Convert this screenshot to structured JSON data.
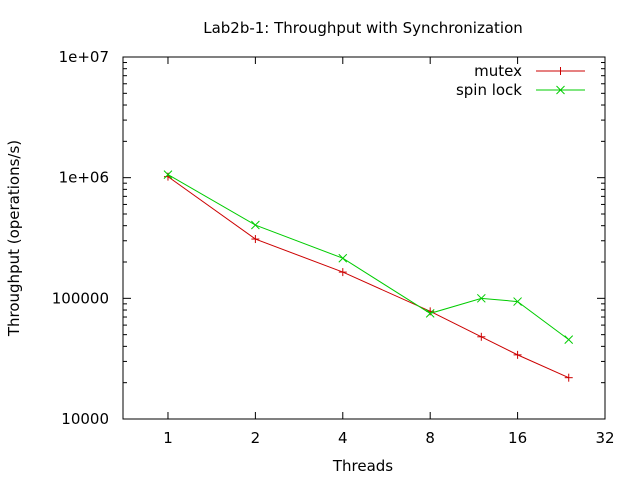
{
  "chart_data": {
    "type": "line",
    "title": "Lab2b-1: Throughput with Synchronization",
    "xlabel": "Threads",
    "ylabel": "Throughput (operations/s)",
    "x_scale": "log2",
    "y_scale": "log10",
    "xlim": [
      0.7,
      32
    ],
    "ylim": [
      10000,
      10000000
    ],
    "x_ticks": [
      1,
      2,
      4,
      8,
      16,
      32
    ],
    "x_tick_labels": [
      "1",
      "2",
      "4",
      "8",
      "16",
      "32"
    ],
    "y_ticks": [
      10000,
      100000,
      1000000,
      10000000
    ],
    "y_tick_labels": [
      "10000",
      "100000",
      "1e+06",
      "1e+07"
    ],
    "grid": false,
    "legend_position": "top-right",
    "series": [
      {
        "name": "mutex",
        "color": "#cc0000",
        "marker": "plus",
        "x": [
          1,
          2,
          4,
          8,
          12,
          16,
          24
        ],
        "y": [
          1020000,
          310000,
          165000,
          78000,
          48000,
          34000,
          22000
        ]
      },
      {
        "name": "spin lock",
        "color": "#00cc00",
        "marker": "cross",
        "x": [
          1,
          2,
          4,
          8,
          12,
          16,
          24
        ],
        "y": [
          1060000,
          405000,
          215000,
          75000,
          100000,
          94000,
          45500
        ]
      }
    ]
  }
}
